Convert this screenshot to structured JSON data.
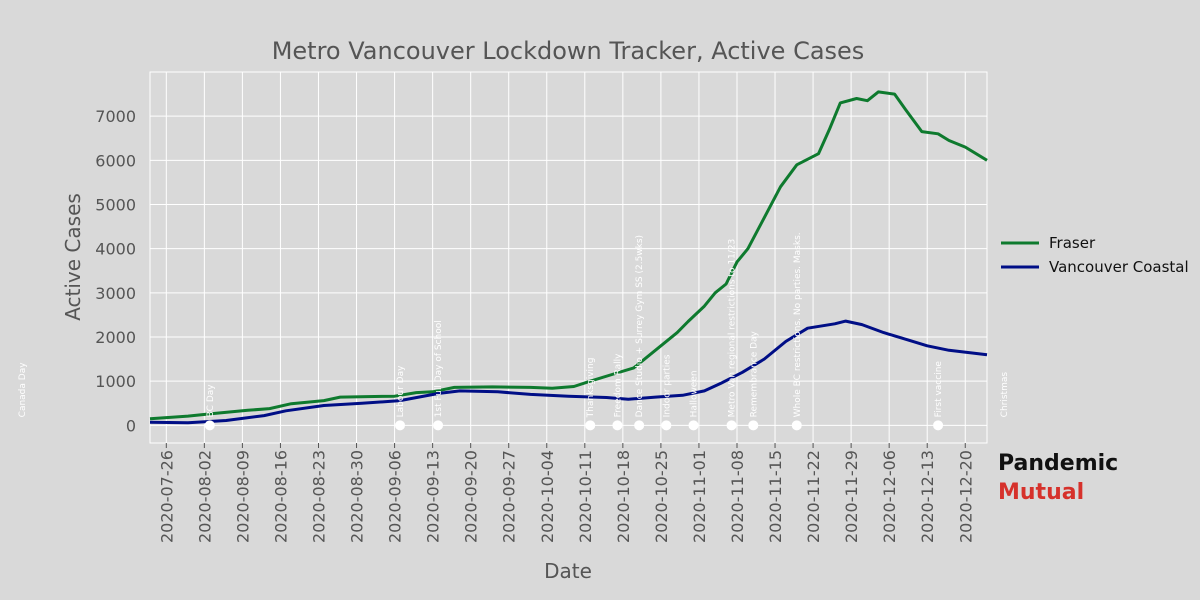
{
  "chart_data": {
    "type": "line",
    "title": "Metro Vancouver Lockdown Tracker, Active Cases",
    "xlabel": "Date",
    "ylabel": "Active Cases",
    "x_range": [
      "2020-07-23",
      "2020-12-24"
    ],
    "ylim": [
      -400,
      8000
    ],
    "x_ticks": [
      "2020-07-26",
      "2020-08-02",
      "2020-08-09",
      "2020-08-16",
      "2020-08-23",
      "2020-08-30",
      "2020-09-06",
      "2020-09-13",
      "2020-09-20",
      "2020-09-27",
      "2020-10-04",
      "2020-10-11",
      "2020-10-18",
      "2020-10-25",
      "2020-11-01",
      "2020-11-08",
      "2020-11-15",
      "2020-11-22",
      "2020-11-29",
      "2020-12-06",
      "2020-12-13",
      "2020-12-20"
    ],
    "y_ticks": [
      0,
      1000,
      2000,
      3000,
      4000,
      5000,
      6000,
      7000
    ],
    "grid": true,
    "legend_placement": "right",
    "series": [
      {
        "name": "Fraser",
        "color": "#0e7a2e",
        "points": [
          [
            "2020-07-23",
            150
          ],
          [
            "2020-07-30",
            210
          ],
          [
            "2020-08-03",
            260
          ],
          [
            "2020-08-10",
            340
          ],
          [
            "2020-08-14",
            380
          ],
          [
            "2020-08-18",
            490
          ],
          [
            "2020-08-24",
            560
          ],
          [
            "2020-08-27",
            640
          ],
          [
            "2020-09-01",
            650
          ],
          [
            "2020-09-06",
            660
          ],
          [
            "2020-09-10",
            740
          ],
          [
            "2020-09-13",
            760
          ],
          [
            "2020-09-17",
            860
          ],
          [
            "2020-09-24",
            870
          ],
          [
            "2020-10-01",
            860
          ],
          [
            "2020-10-05",
            840
          ],
          [
            "2020-10-09",
            880
          ],
          [
            "2020-10-12",
            1000
          ],
          [
            "2020-10-16",
            1150
          ],
          [
            "2020-10-20",
            1300
          ],
          [
            "2020-10-22",
            1500
          ],
          [
            "2020-10-25",
            1800
          ],
          [
            "2020-10-28",
            2100
          ],
          [
            "2020-10-30",
            2350
          ],
          [
            "2020-11-02",
            2700
          ],
          [
            "2020-11-04",
            3000
          ],
          [
            "2020-11-06",
            3200
          ],
          [
            "2020-11-08",
            3700
          ],
          [
            "2020-11-10",
            4000
          ],
          [
            "2020-11-13",
            4700
          ],
          [
            "2020-11-16",
            5400
          ],
          [
            "2020-11-19",
            5900
          ],
          [
            "2020-11-23",
            6150
          ],
          [
            "2020-11-25",
            6700
          ],
          [
            "2020-11-27",
            7300
          ],
          [
            "2020-11-30",
            7400
          ],
          [
            "2020-12-02",
            7350
          ],
          [
            "2020-12-04",
            7550
          ],
          [
            "2020-12-07",
            7500
          ],
          [
            "2020-12-09",
            7150
          ],
          [
            "2020-12-12",
            6650
          ],
          [
            "2020-12-15",
            6600
          ],
          [
            "2020-12-17",
            6450
          ],
          [
            "2020-12-20",
            6300
          ],
          [
            "2020-12-24",
            6000
          ]
        ]
      },
      {
        "name": "Vancouver Coastal",
        "color": "#000e86",
        "points": [
          [
            "2020-07-23",
            70
          ],
          [
            "2020-07-30",
            60
          ],
          [
            "2020-08-06",
            110
          ],
          [
            "2020-08-13",
            220
          ],
          [
            "2020-08-17",
            330
          ],
          [
            "2020-08-24",
            450
          ],
          [
            "2020-08-31",
            500
          ],
          [
            "2020-09-07",
            560
          ],
          [
            "2020-09-14",
            720
          ],
          [
            "2020-09-18",
            780
          ],
          [
            "2020-09-25",
            760
          ],
          [
            "2020-10-01",
            700
          ],
          [
            "2020-10-08",
            660
          ],
          [
            "2020-10-15",
            630
          ],
          [
            "2020-10-19",
            590
          ],
          [
            "2020-10-24",
            640
          ],
          [
            "2020-10-29",
            680
          ],
          [
            "2020-11-02",
            780
          ],
          [
            "2020-11-05",
            950
          ],
          [
            "2020-11-09",
            1200
          ],
          [
            "2020-11-13",
            1500
          ],
          [
            "2020-11-17",
            1900
          ],
          [
            "2020-11-21",
            2200
          ],
          [
            "2020-11-26",
            2300
          ],
          [
            "2020-11-28",
            2360
          ],
          [
            "2020-12-01",
            2280
          ],
          [
            "2020-12-05",
            2100
          ],
          [
            "2020-12-09",
            1950
          ],
          [
            "2020-12-13",
            1800
          ],
          [
            "2020-12-17",
            1700
          ],
          [
            "2020-12-24",
            1600
          ]
        ]
      }
    ],
    "events": [
      {
        "date": "2020-07-01",
        "label": "Canada Day"
      },
      {
        "date": "2020-08-03",
        "label": "BC Day"
      },
      {
        "date": "2020-09-07",
        "label": "Labour Day"
      },
      {
        "date": "2020-09-14",
        "label": "1st Full Day of School"
      },
      {
        "date": "2020-10-12",
        "label": "Thanksgiving"
      },
      {
        "date": "2020-10-17",
        "label": "Freedom Rally"
      },
      {
        "date": "2020-10-21",
        "label": "Dance Studio + Surrey Gym SS (2.5wks)"
      },
      {
        "date": "2020-10-26",
        "label": "Indoor parties"
      },
      {
        "date": "2020-10-31",
        "label": "Halloween"
      },
      {
        "date": "2020-11-07",
        "label": "Metro Van regional restrictions to 11/23"
      },
      {
        "date": "2020-11-11",
        "label": "Remembrance Day"
      },
      {
        "date": "2020-11-19",
        "label": "Whole BC restrictions. No parties. Masks."
      },
      {
        "date": "2020-12-15",
        "label": "First vaccine"
      },
      {
        "date": "2020-12-25",
        "label": "Christmas"
      }
    ]
  },
  "brand": {
    "line1": "Pandemic",
    "line2": "Mutual"
  },
  "colors": {
    "fraser": "#0e7a2e",
    "coastal": "#000e86",
    "brand_red": "#d6312b",
    "background": "#d9d9d9"
  }
}
